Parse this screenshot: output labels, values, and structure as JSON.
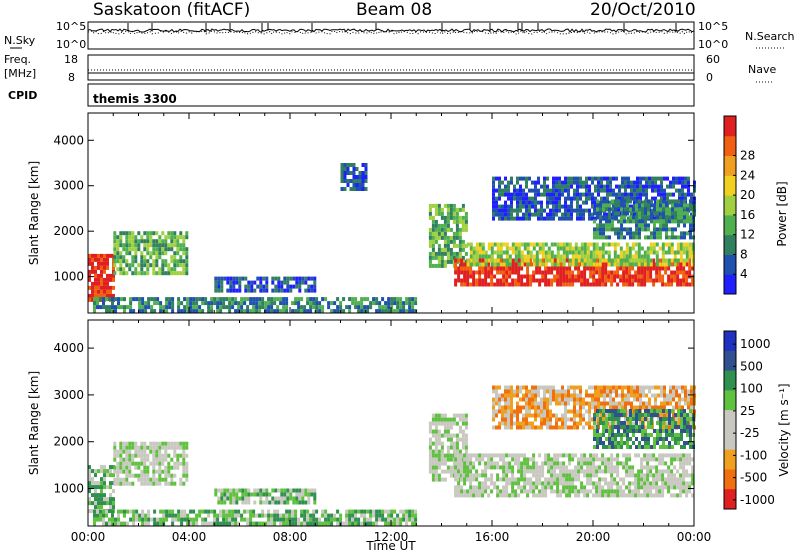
{
  "header": {
    "station": "Saskatoon (fitACF)",
    "beam": "Beam 08",
    "date": "20/Oct/2010"
  },
  "sky_panel": {
    "left_label": "N.Sky",
    "left_ticks": [
      "10^5",
      "10^0"
    ],
    "right_ticks": [
      "10^5",
      "10^0"
    ],
    "right_label": "N.Search"
  },
  "freq_panel": {
    "left_label_1": "Freq.",
    "left_label_2": "[MHz]",
    "left_ticks": [
      "18",
      "8"
    ],
    "right_ticks": [
      "60",
      "0"
    ],
    "right_label": "Nave"
  },
  "cpid_panel": {
    "label": "CPID",
    "program": "themis 3300"
  },
  "colors": {
    "power": [
      "#2020ff",
      "#2050b0",
      "#308060",
      "#50b050",
      "#a0d040",
      "#f0d020",
      "#f0a020",
      "#f06010",
      "#e02020"
    ],
    "velocity": [
      "#2030c0",
      "#305090",
      "#309050",
      "#60c040",
      "#c8c8c0",
      "#c8c8c0",
      "#f0a020",
      "#f07010",
      "#e02020"
    ]
  },
  "chart_data": [
    {
      "type": "heatmap",
      "panel": "power",
      "ylabel": "Slant Range [km]",
      "y_ticks": [
        "1000",
        "2000",
        "3000",
        "4000"
      ],
      "ylim": [
        200,
        4600
      ],
      "x_ticks": [
        "00:00",
        "04:00",
        "08:00",
        "12:00",
        "16:00",
        "20:00",
        "00:00"
      ],
      "xlim": [
        0,
        24
      ],
      "colorbar_label": "Power [dB]",
      "colorbar_ticks": [
        "4",
        "8",
        "12",
        "16",
        "20",
        "24",
        "28"
      ],
      "regions": [
        {
          "t0": 0.0,
          "t1": 1.0,
          "r0": 500,
          "r1": 1500,
          "level": 8
        },
        {
          "t0": 1.0,
          "t1": 3.9,
          "r0": 1100,
          "r1": 2000,
          "level": 3
        },
        {
          "t0": 0.2,
          "t1": 13.0,
          "r0": 250,
          "r1": 550,
          "level": 2
        },
        {
          "t0": 5.0,
          "t1": 9.0,
          "r0": 700,
          "r1": 1000,
          "level": 1
        },
        {
          "t0": 10.0,
          "t1": 11.0,
          "r0": 2900,
          "r1": 3500,
          "level": 1
        },
        {
          "t0": 13.5,
          "t1": 15.0,
          "r0": 1200,
          "r1": 2600,
          "level": 3
        },
        {
          "t0": 14.5,
          "t1": 24.0,
          "r0": 850,
          "r1": 1400,
          "level": 8
        },
        {
          "t0": 15.0,
          "t1": 24.0,
          "r0": 1300,
          "r1": 1750,
          "level": 4
        },
        {
          "t0": 16.0,
          "t1": 24.0,
          "r0": 2300,
          "r1": 3200,
          "level": 1
        },
        {
          "t0": 20.0,
          "t1": 24.0,
          "r0": 1900,
          "r1": 2700,
          "level": 2
        }
      ]
    },
    {
      "type": "heatmap",
      "panel": "velocity",
      "xlabel": "Time UT",
      "ylabel": "Slant Range [km]",
      "y_ticks": [
        "1000",
        "2000",
        "3000",
        "4000"
      ],
      "ylim": [
        200,
        4600
      ],
      "x_ticks": [
        "00:00",
        "04:00",
        "08:00",
        "12:00",
        "16:00",
        "20:00",
        "00:00"
      ],
      "xlim": [
        0,
        24
      ],
      "colorbar_label": "Velocity [m s⁻¹]",
      "colorbar_ticks": [
        "1000",
        "500",
        "100",
        "25",
        "-25",
        "-100",
        "-500",
        "-1000"
      ],
      "regions": [
        {
          "t0": 0.0,
          "t1": 1.0,
          "r0": 500,
          "r1": 1500,
          "level": 3
        },
        {
          "t0": 1.0,
          "t1": 3.9,
          "r0": 1100,
          "r1": 2000,
          "level": 4
        },
        {
          "t0": 0.2,
          "t1": 13.0,
          "r0": 250,
          "r1": 550,
          "level": 3
        },
        {
          "t0": 5.0,
          "t1": 9.0,
          "r0": 700,
          "r1": 1000,
          "level": 3
        },
        {
          "t0": 13.5,
          "t1": 15.0,
          "r0": 1200,
          "r1": 2600,
          "level": 4
        },
        {
          "t0": 14.5,
          "t1": 24.0,
          "r0": 850,
          "r1": 1750,
          "level": 4
        },
        {
          "t0": 16.0,
          "t1": 24.0,
          "r0": 2300,
          "r1": 3200,
          "level": 6
        },
        {
          "t0": 20.0,
          "t1": 24.0,
          "r0": 1900,
          "r1": 2700,
          "level": 2
        }
      ]
    }
  ]
}
